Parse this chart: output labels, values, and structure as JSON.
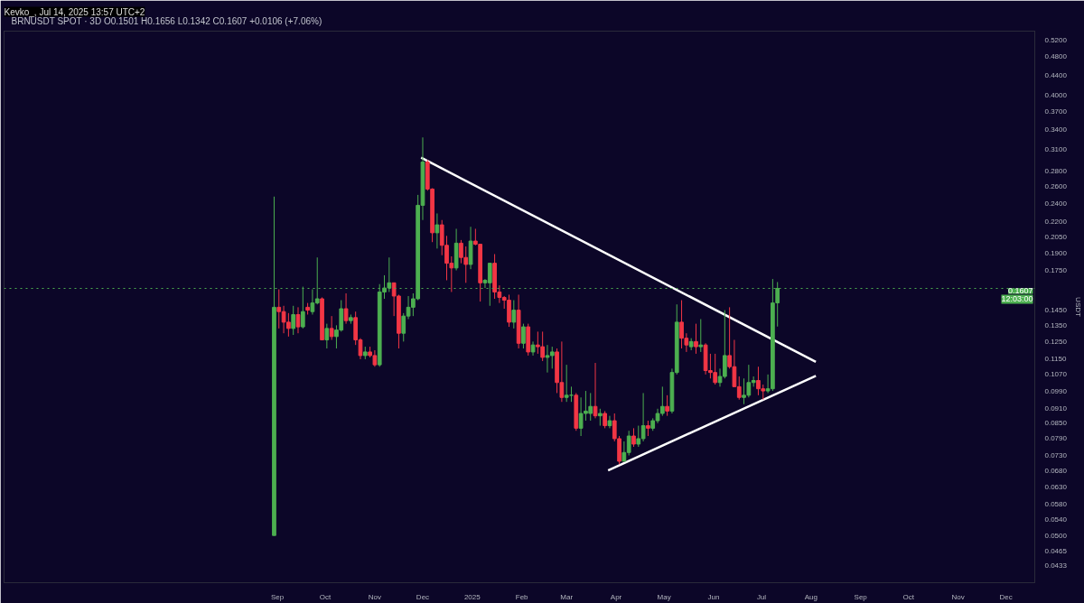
{
  "chart_data": {
    "type": "candlestick",
    "title": "BRNUSDT SPOT · 3D",
    "subtitle": "O0.1501 H0.1656 L0.1342 C0.1607 +0.0106 (+7.06%)",
    "ylabel": "USDT",
    "annotations": [
      "Kevko_, Jul 14, 2025 13:57 UTC+2",
      "12:03:00"
    ],
    "log": "y",
    "grid": false,
    "xlim": [
      "2024-03-14",
      "2025-12-19"
    ],
    "ylim": [
      0.04,
      0.542
    ],
    "xticks": [
      {
        "value": "2024-09-01",
        "label": "Sep"
      },
      {
        "value": "2024-10-01",
        "label": "Oct"
      },
      {
        "value": "2024-11-01",
        "label": "Nov"
      },
      {
        "value": "2024-12-01",
        "label": "Dec"
      },
      {
        "value": "2025-01-01",
        "label": "2025"
      },
      {
        "value": "2025-02-01",
        "label": "Feb"
      },
      {
        "value": "2025-03-01",
        "label": "Mar"
      },
      {
        "value": "2025-04-01",
        "label": "Apr"
      },
      {
        "value": "2025-05-01",
        "label": "May"
      },
      {
        "value": "2025-06-01",
        "label": "Jun"
      },
      {
        "value": "2025-07-01",
        "label": "Jul"
      },
      {
        "value": "2025-08-01",
        "label": "Aug"
      },
      {
        "value": "2025-09-01",
        "label": "Sep"
      },
      {
        "value": "2025-10-01",
        "label": "Oct"
      },
      {
        "value": "2025-11-01",
        "label": "Nov"
      },
      {
        "value": "2025-12-01",
        "label": "Dec"
      }
    ],
    "yticks": [
      {
        "value": 0.52,
        "label": "0.5200"
      },
      {
        "value": 0.48,
        "label": "0.4800"
      },
      {
        "value": 0.44,
        "label": "0.4400"
      },
      {
        "value": 0.4,
        "label": "0.4000"
      },
      {
        "value": 0.37,
        "label": "0.3700"
      },
      {
        "value": 0.34,
        "label": "0.3400"
      },
      {
        "value": 0.31,
        "label": "0.3100"
      },
      {
        "value": 0.28,
        "label": "0.2800"
      },
      {
        "value": 0.26,
        "label": "0.2600"
      },
      {
        "value": 0.24,
        "label": "0.2400"
      },
      {
        "value": 0.22,
        "label": "0.2200"
      },
      {
        "value": 0.205,
        "label": "0.2050"
      },
      {
        "value": 0.19,
        "label": "0.1900"
      },
      {
        "value": 0.175,
        "label": "0.1750"
      },
      {
        "value": 0.145,
        "label": "0.1450"
      },
      {
        "value": 0.135,
        "label": "0.1350"
      },
      {
        "value": 0.125,
        "label": "0.1250"
      },
      {
        "value": 0.115,
        "label": "0.1150"
      },
      {
        "value": 0.107,
        "label": "0.1070"
      },
      {
        "value": 0.099,
        "label": "0.0990"
      },
      {
        "value": 0.091,
        "label": "0.0910"
      },
      {
        "value": 0.085,
        "label": "0.0850"
      },
      {
        "value": 0.079,
        "label": "0.0790"
      },
      {
        "value": 0.073,
        "label": "0.0730"
      },
      {
        "value": 0.068,
        "label": "0.0680"
      },
      {
        "value": 0.063,
        "label": "0.0630"
      },
      {
        "value": 0.058,
        "label": "0.0580"
      },
      {
        "value": 0.054,
        "label": "0.0540"
      },
      {
        "value": 0.05,
        "label": "0.0500"
      },
      {
        "value": 0.0465,
        "label": "0.0465"
      },
      {
        "value": 0.0433,
        "label": "0.0433"
      }
    ],
    "ref_lines": [
      {
        "axis": "y",
        "value": 0.1607,
        "label": "0.1607",
        "color": "#4caf50",
        "line_style": "dotted"
      }
    ],
    "x": [
      "2024-08-30",
      "2024-09-02",
      "2024-09-05",
      "2024-09-08",
      "2024-09-11",
      "2024-09-14",
      "2024-09-17",
      "2024-09-20",
      "2024-09-23",
      "2024-09-26",
      "2024-09-29",
      "2024-10-02",
      "2024-10-05",
      "2024-10-08",
      "2024-10-11",
      "2024-10-14",
      "2024-10-17",
      "2024-10-20",
      "2024-10-23",
      "2024-10-26",
      "2024-10-29",
      "2024-11-01",
      "2024-11-04",
      "2024-11-07",
      "2024-11-10",
      "2024-11-13",
      "2024-11-16",
      "2024-11-19",
      "2024-11-22",
      "2024-11-25",
      "2024-11-28",
      "2024-12-01",
      "2024-12-04",
      "2024-12-07",
      "2024-12-10",
      "2024-12-13",
      "2024-12-16",
      "2024-12-19",
      "2024-12-22",
      "2024-12-25",
      "2024-12-28",
      "2024-12-31",
      "2025-01-03",
      "2025-01-06",
      "2025-01-09",
      "2025-01-12",
      "2025-01-15",
      "2025-01-18",
      "2025-01-21",
      "2025-01-24",
      "2025-01-27",
      "2025-01-30",
      "2025-02-02",
      "2025-02-05",
      "2025-02-08",
      "2025-02-11",
      "2025-02-14",
      "2025-02-17",
      "2025-02-20",
      "2025-02-23",
      "2025-02-26",
      "2025-03-01",
      "2025-03-04",
      "2025-03-07",
      "2025-03-10",
      "2025-03-13",
      "2025-03-16",
      "2025-03-19",
      "2025-03-22",
      "2025-03-25",
      "2025-03-28",
      "2025-03-31",
      "2025-04-03",
      "2025-04-06",
      "2025-04-09",
      "2025-04-12",
      "2025-04-15",
      "2025-04-18",
      "2025-04-21",
      "2025-04-24",
      "2025-04-27",
      "2025-04-30",
      "2025-05-03",
      "2025-05-06",
      "2025-05-09",
      "2025-05-12",
      "2025-05-15",
      "2025-05-18",
      "2025-05-21",
      "2025-05-24",
      "2025-05-27",
      "2025-05-30",
      "2025-06-02",
      "2025-06-05",
      "2025-06-08",
      "2025-06-11",
      "2025-06-14",
      "2025-06-17",
      "2025-06-20",
      "2025-06-23",
      "2025-06-26",
      "2025-06-29",
      "2025-07-02",
      "2025-07-05",
      "2025-07-08",
      "2025-07-11"
    ],
    "ohlc": [
      [
        0.05,
        0.248,
        0.05,
        0.147
      ],
      [
        0.147,
        0.16,
        0.133,
        0.144
      ],
      [
        0.144,
        0.148,
        0.13,
        0.137
      ],
      [
        0.137,
        0.143,
        0.128,
        0.133
      ],
      [
        0.133,
        0.148,
        0.129,
        0.142
      ],
      [
        0.142,
        0.147,
        0.13,
        0.134
      ],
      [
        0.134,
        0.162,
        0.133,
        0.144
      ],
      [
        0.147,
        0.15,
        0.142,
        0.145
      ],
      [
        0.144,
        0.16,
        0.142,
        0.15
      ],
      [
        0.15,
        0.186,
        0.149,
        0.153
      ],
      [
        0.153,
        0.154,
        0.126,
        0.126
      ],
      [
        0.126,
        0.136,
        0.121,
        0.133
      ],
      [
        0.133,
        0.141,
        0.126,
        0.128
      ],
      [
        0.128,
        0.135,
        0.121,
        0.132
      ],
      [
        0.132,
        0.152,
        0.131,
        0.146
      ],
      [
        0.146,
        0.157,
        0.136,
        0.138
      ],
      [
        0.138,
        0.142,
        0.136,
        0.14
      ],
      [
        0.14,
        0.144,
        0.123,
        0.126
      ],
      [
        0.126,
        0.127,
        0.115,
        0.117
      ],
      [
        0.117,
        0.122,
        0.115,
        0.119
      ],
      [
        0.119,
        0.122,
        0.116,
        0.117
      ],
      [
        0.117,
        0.12,
        0.111,
        0.112
      ],
      [
        0.112,
        0.164,
        0.111,
        0.158
      ],
      [
        0.158,
        0.171,
        0.153,
        0.161
      ],
      [
        0.161,
        0.186,
        0.158,
        0.165
      ],
      [
        0.165,
        0.165,
        0.141,
        0.155
      ],
      [
        0.155,
        0.156,
        0.121,
        0.13
      ],
      [
        0.13,
        0.143,
        0.125,
        0.141
      ],
      [
        0.141,
        0.155,
        0.139,
        0.147
      ],
      [
        0.147,
        0.157,
        0.141,
        0.153
      ],
      [
        0.153,
        0.25,
        0.152,
        0.238
      ],
      [
        0.238,
        0.328,
        0.222,
        0.292
      ],
      [
        0.292,
        0.295,
        0.255,
        0.257
      ],
      [
        0.257,
        0.258,
        0.2,
        0.209
      ],
      [
        0.209,
        0.229,
        0.194,
        0.217
      ],
      [
        0.217,
        0.222,
        0.188,
        0.197
      ],
      [
        0.197,
        0.206,
        0.167,
        0.181
      ],
      [
        0.181,
        0.187,
        0.158,
        0.177
      ],
      [
        0.177,
        0.213,
        0.175,
        0.199
      ],
      [
        0.199,
        0.202,
        0.181,
        0.186
      ],
      [
        0.186,
        0.196,
        0.165,
        0.18
      ],
      [
        0.18,
        0.215,
        0.176,
        0.201
      ],
      [
        0.201,
        0.213,
        0.197,
        0.198
      ],
      [
        0.198,
        0.198,
        0.151,
        0.165
      ],
      [
        0.165,
        0.168,
        0.161,
        0.167
      ],
      [
        0.165,
        0.181,
        0.148,
        0.181
      ],
      [
        0.181,
        0.189,
        0.153,
        0.158
      ],
      [
        0.158,
        0.163,
        0.15,
        0.154
      ],
      [
        0.154,
        0.155,
        0.146,
        0.152
      ],
      [
        0.152,
        0.156,
        0.134,
        0.137
      ],
      [
        0.137,
        0.152,
        0.133,
        0.145
      ],
      [
        0.145,
        0.156,
        0.121,
        0.124
      ],
      [
        0.124,
        0.136,
        0.121,
        0.134
      ],
      [
        0.134,
        0.136,
        0.117,
        0.119
      ],
      [
        0.119,
        0.125,
        0.117,
        0.123
      ],
      [
        0.123,
        0.131,
        0.118,
        0.122
      ],
      [
        0.122,
        0.131,
        0.114,
        0.116
      ],
      [
        0.116,
        0.123,
        0.108,
        0.117
      ],
      [
        0.117,
        0.122,
        0.11,
        0.119
      ],
      [
        0.119,
        0.121,
        0.098,
        0.103
      ],
      [
        0.103,
        0.125,
        0.094,
        0.096
      ],
      [
        0.096,
        0.112,
        0.094,
        0.097
      ],
      [
        0.097,
        0.101,
        0.094,
        0.097
      ],
      [
        0.097,
        0.098,
        0.082,
        0.083
      ],
      [
        0.083,
        0.096,
        0.08,
        0.089
      ],
      [
        0.089,
        0.099,
        0.086,
        0.09
      ],
      [
        0.089,
        0.098,
        0.086,
        0.092
      ],
      [
        0.092,
        0.113,
        0.087,
        0.088
      ],
      [
        0.088,
        0.091,
        0.084,
        0.089
      ],
      [
        0.089,
        0.09,
        0.083,
        0.084
      ],
      [
        0.084,
        0.088,
        0.083,
        0.086
      ],
      [
        0.086,
        0.089,
        0.078,
        0.079
      ],
      [
        0.079,
        0.08,
        0.07,
        0.071
      ],
      [
        0.071,
        0.078,
        0.071,
        0.074
      ],
      [
        0.074,
        0.082,
        0.073,
        0.08
      ],
      [
        0.08,
        0.083,
        0.076,
        0.077
      ],
      [
        0.077,
        0.084,
        0.076,
        0.079
      ],
      [
        0.079,
        0.098,
        0.078,
        0.084
      ],
      [
        0.084,
        0.086,
        0.08,
        0.083
      ],
      [
        0.083,
        0.087,
        0.082,
        0.086
      ],
      [
        0.086,
        0.091,
        0.085,
        0.089
      ],
      [
        0.089,
        0.101,
        0.088,
        0.092
      ],
      [
        0.092,
        0.097,
        0.088,
        0.09
      ],
      [
        0.09,
        0.11,
        0.089,
        0.108
      ],
      [
        0.108,
        0.149,
        0.107,
        0.137
      ],
      [
        0.137,
        0.152,
        0.121,
        0.127
      ],
      [
        0.127,
        0.13,
        0.119,
        0.123
      ],
      [
        0.122,
        0.127,
        0.12,
        0.125
      ],
      [
        0.125,
        0.136,
        0.118,
        0.122
      ],
      [
        0.122,
        0.139,
        0.119,
        0.123
      ],
      [
        0.123,
        0.124,
        0.107,
        0.109
      ],
      [
        0.109,
        0.118,
        0.105,
        0.108
      ],
      [
        0.108,
        0.118,
        0.102,
        0.103
      ],
      [
        0.103,
        0.11,
        0.101,
        0.106
      ],
      [
        0.106,
        0.145,
        0.105,
        0.117
      ],
      [
        0.117,
        0.147,
        0.11,
        0.111
      ],
      [
        0.111,
        0.126,
        0.101,
        0.101
      ],
      [
        0.101,
        0.106,
        0.095,
        0.096
      ],
      [
        0.096,
        0.105,
        0.093,
        0.097
      ],
      [
        0.097,
        0.112,
        0.096,
        0.103
      ],
      [
        0.103,
        0.106,
        0.101,
        0.104
      ],
      [
        0.104,
        0.111,
        0.097,
        0.1
      ],
      [
        0.1,
        0.102,
        0.095,
        0.099
      ],
      [
        0.099,
        0.107,
        0.098,
        0.1
      ],
      [
        0.1,
        0.168,
        0.099,
        0.15
      ],
      [
        0.1501,
        0.1656,
        0.1342,
        0.1607
      ]
    ],
    "colors": [
      "#4caf50",
      "#f23645",
      "#f23645",
      "#f23645",
      "#4caf50",
      "#f23645",
      "#4caf50",
      "#f23645",
      "#4caf50",
      "#4caf50",
      "#f23645",
      "#4caf50",
      "#f23645",
      "#4caf50",
      "#4caf50",
      "#f23645",
      "#4caf50",
      "#f23645",
      "#f23645",
      "#4caf50",
      "#f23645",
      "#f23645",
      "#4caf50",
      "#4caf50",
      "#4caf50",
      "#f23645",
      "#f23645",
      "#4caf50",
      "#4caf50",
      "#4caf50",
      "#4caf50",
      "#4caf50",
      "#f23645",
      "#f23645",
      "#4caf50",
      "#f23645",
      "#f23645",
      "#f23645",
      "#4caf50",
      "#f23645",
      "#f23645",
      "#4caf50",
      "#f23645",
      "#f23645",
      "#4caf50",
      "#4caf50",
      "#f23645",
      "#f23645",
      "#f23645",
      "#f23645",
      "#4caf50",
      "#f23645",
      "#4caf50",
      "#f23645",
      "#4caf50",
      "#f23645",
      "#f23645",
      "#4caf50",
      "#4caf50",
      "#f23645",
      "#f23645",
      "#4caf50",
      "#4caf50",
      "#f23645",
      "#4caf50",
      "#4caf50",
      "#4caf50",
      "#f23645",
      "#4caf50",
      "#f23645",
      "#4caf50",
      "#f23645",
      "#f23645",
      "#4caf50",
      "#4caf50",
      "#f23645",
      "#4caf50",
      "#4caf50",
      "#f23645",
      "#4caf50",
      "#4caf50",
      "#4caf50",
      "#f23645",
      "#4caf50",
      "#4caf50",
      "#f23645",
      "#f23645",
      "#4caf50",
      "#f23645",
      "#4caf50",
      "#f23645",
      "#f23645",
      "#f23645",
      "#4caf50",
      "#4caf50",
      "#f23645",
      "#f23645",
      "#f23645",
      "#4caf50",
      "#4caf50",
      "#4caf50",
      "#f23645",
      "#f23645",
      "#4caf50",
      "#4caf50",
      "#4caf50"
    ],
    "series": [
      {
        "type": "line",
        "color": "#ffffff",
        "x": [
          "2024-11-30",
          "2025-08-04"
        ],
        "values": [
          0.298,
          0.1136
        ]
      },
      {
        "type": "line",
        "color": "#ffffff",
        "x": [
          "2025-03-27",
          "2025-08-04"
        ],
        "values": [
          0.068,
          0.1063
        ]
      }
    ]
  }
}
